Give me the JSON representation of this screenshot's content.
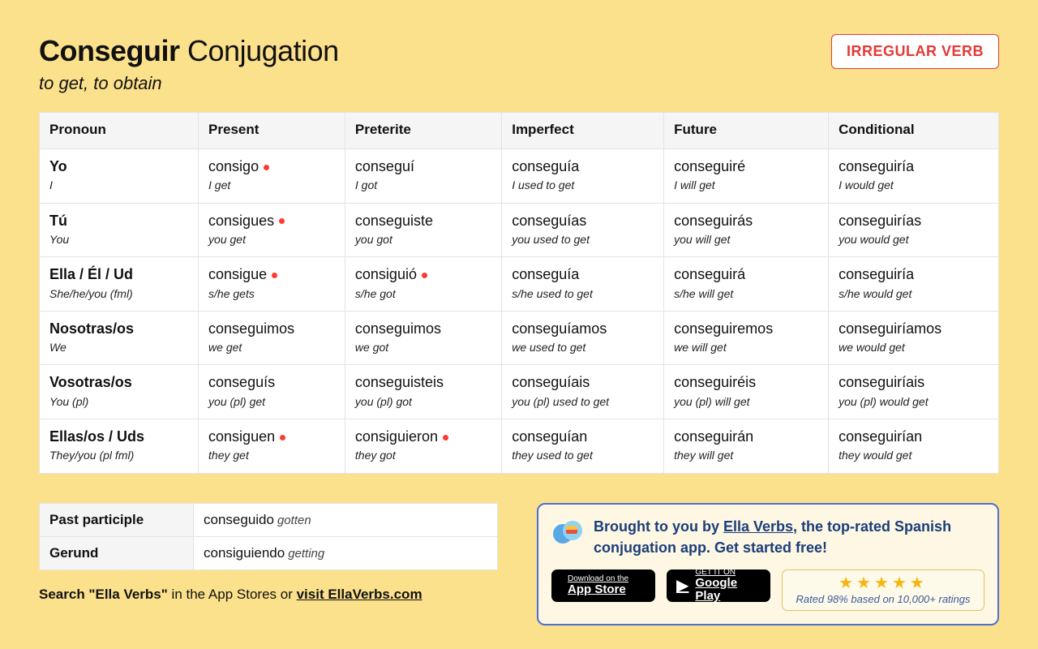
{
  "header": {
    "verb": "Conseguir",
    "heading_suffix": "Conjugation",
    "translation": "to get, to obtain",
    "badge": "IRREGULAR VERB"
  },
  "colors": {
    "page_bg": "#fce18c",
    "badge_text": "#e53935",
    "irregular_dot": "#ff3b30",
    "promo_border": "#4e6fd8",
    "promo_text": "#1b3d7a",
    "star": "#f6b40e"
  },
  "columns": [
    "Pronoun",
    "Present",
    "Preterite",
    "Imperfect",
    "Future",
    "Conditional"
  ],
  "pronouns": [
    {
      "es": "Yo",
      "en": "I"
    },
    {
      "es": "Tú",
      "en": "You"
    },
    {
      "es": "Ella / Él / Ud",
      "en": "She/he/you (fml)"
    },
    {
      "es": "Nosotras/os",
      "en": "We"
    },
    {
      "es": "Vosotras/os",
      "en": "You (pl)"
    },
    {
      "es": "Ellas/os / Uds",
      "en": "They/you (pl fml)"
    }
  ],
  "tenses": {
    "present": [
      {
        "es": "consigo",
        "en": "I get",
        "irr": true
      },
      {
        "es": "consigues",
        "en": "you get",
        "irr": true
      },
      {
        "es": "consigue",
        "en": "s/he gets",
        "irr": true
      },
      {
        "es": "conseguimos",
        "en": "we get",
        "irr": false
      },
      {
        "es": "conseguís",
        "en": "you (pl) get",
        "irr": false
      },
      {
        "es": "consiguen",
        "en": "they get",
        "irr": true
      }
    ],
    "preterite": [
      {
        "es": "conseguí",
        "en": "I got",
        "irr": false
      },
      {
        "es": "conseguiste",
        "en": "you got",
        "irr": false
      },
      {
        "es": "consiguió",
        "en": "s/he got",
        "irr": true
      },
      {
        "es": "conseguimos",
        "en": "we got",
        "irr": false
      },
      {
        "es": "conseguisteis",
        "en": "you (pl) got",
        "irr": false
      },
      {
        "es": "consiguieron",
        "en": "they got",
        "irr": true
      }
    ],
    "imperfect": [
      {
        "es": "conseguía",
        "en": "I used to get",
        "irr": false
      },
      {
        "es": "conseguías",
        "en": "you used to get",
        "irr": false
      },
      {
        "es": "conseguía",
        "en": "s/he used to get",
        "irr": false
      },
      {
        "es": "conseguíamos",
        "en": "we used to get",
        "irr": false
      },
      {
        "es": "conseguíais",
        "en": "you (pl) used to get",
        "irr": false
      },
      {
        "es": "conseguían",
        "en": "they used to get",
        "irr": false
      }
    ],
    "future": [
      {
        "es": "conseguiré",
        "en": "I will get",
        "irr": false
      },
      {
        "es": "conseguirás",
        "en": "you will get",
        "irr": false
      },
      {
        "es": "conseguirá",
        "en": "s/he will get",
        "irr": false
      },
      {
        "es": "conseguiremos",
        "en": "we will get",
        "irr": false
      },
      {
        "es": "conseguiréis",
        "en": "you (pl) will get",
        "irr": false
      },
      {
        "es": "conseguirán",
        "en": "they will get",
        "irr": false
      }
    ],
    "conditional": [
      {
        "es": "conseguiría",
        "en": "I would get",
        "irr": false
      },
      {
        "es": "conseguirías",
        "en": "you would get",
        "irr": false
      },
      {
        "es": "conseguiría",
        "en": "s/he would get",
        "irr": false
      },
      {
        "es": "conseguiríamos",
        "en": "we would get",
        "irr": false
      },
      {
        "es": "conseguiríais",
        "en": "you (pl) would get",
        "irr": false
      },
      {
        "es": "conseguirían",
        "en": "they would get",
        "irr": false
      }
    ]
  },
  "participles": {
    "past_label": "Past participle",
    "past_es": "conseguido",
    "past_en": "gotten",
    "gerund_label": "Gerund",
    "gerund_es": "consiguiendo",
    "gerund_en": "getting"
  },
  "search_line": {
    "prefix": "Search \"Ella Verbs\"",
    "middle": " in the App Stores or ",
    "link": "visit EllaVerbs.com"
  },
  "promo": {
    "text_prefix": "Brought to you by ",
    "brand": "Ella Verbs",
    "text_suffix": ", the top-rated Spanish conjugation app. Get started free!",
    "appstore_small": "Download on the",
    "appstore_big": "App Store",
    "play_small": "GET IT ON",
    "play_big": "Google Play",
    "rating_text": "Rated 98% based on 10,000+ ratings"
  }
}
